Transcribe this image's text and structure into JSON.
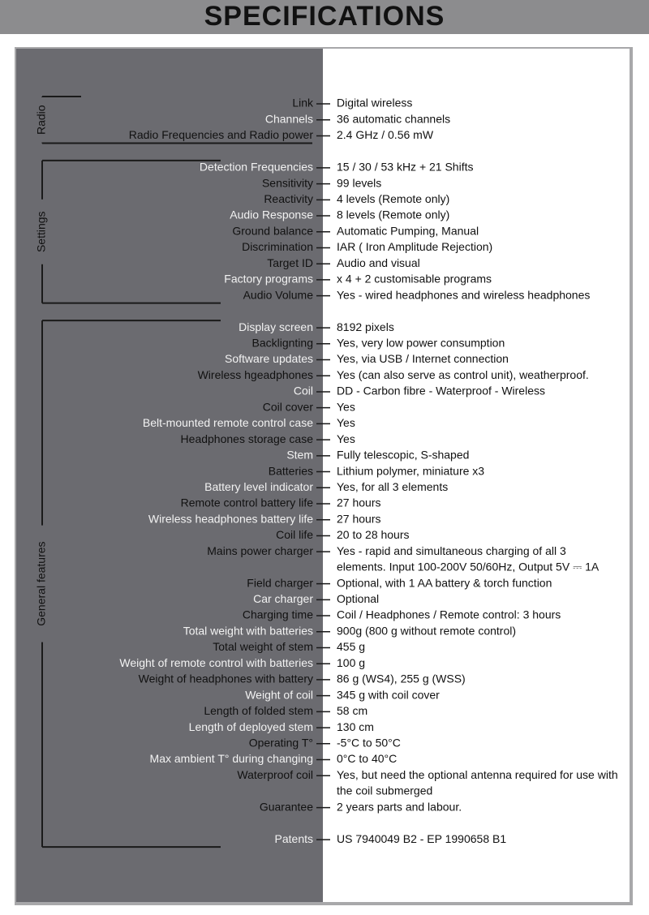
{
  "title": "SPECIFICATIONS",
  "groups": [
    {
      "name": "Radio",
      "rows": [
        {
          "label": "Link",
          "value": "Digital wireless"
        },
        {
          "label": "Channels",
          "value": "36 automatic channels"
        },
        {
          "label": "Radio Frequencies and Radio power",
          "value": "2.4 GHz / 0.56 mW"
        }
      ]
    },
    {
      "name": "Settings",
      "rows": [
        {
          "label": "Detection Frequencies",
          "value": "15 / 30  / 53 kHz +  21 Shifts"
        },
        {
          "label": "Sensitivity",
          "value": "99 levels"
        },
        {
          "label": "Reactivity",
          "value": "4 levels (Remote only)"
        },
        {
          "label": "Audio Response",
          "value": "8 levels (Remote only)"
        },
        {
          "label": "Ground balance",
          "value": "Automatic Pumping, Manual"
        },
        {
          "label": "Discrimination",
          "value": "IAR ( Iron Amplitude Rejection)"
        },
        {
          "label": "Target ID",
          "value": "Audio and visual"
        },
        {
          "label": "Factory programs",
          "value": "x 4 + 2 customisable programs"
        },
        {
          "label": "Audio Volume",
          "value": "Yes - wired headphones and wireless headphones"
        }
      ]
    },
    {
      "name": "General features",
      "rows": [
        {
          "label": "Display screen",
          "value": "8192 pixels"
        },
        {
          "label": "Backlignting",
          "value": "Yes, very low power consumption"
        },
        {
          "label": "Software updates",
          "value": "Yes, via USB / Internet connection"
        },
        {
          "label": "Wireless hgeadphones",
          "value": "Yes (can also serve as control unit), weatherproof."
        },
        {
          "label": "Coil",
          "value": "DD - Carbon fibre - Waterproof - Wireless"
        },
        {
          "label": "Coil cover",
          "value": "Yes"
        },
        {
          "label": "Belt-mounted remote control case",
          "value": "Yes"
        },
        {
          "label": "Headphones storage case",
          "value": "Yes"
        },
        {
          "label": "Stem",
          "value": "Fully telescopic, S-shaped"
        },
        {
          "label": "Batteries",
          "value": "Lithium polymer, miniature x3"
        },
        {
          "label": "Battery level indicator",
          "value": "Yes, for all 3 elements"
        },
        {
          "label": "Remote control battery life",
          "value": "27 hours"
        },
        {
          "label": "Wireless headphones battery life",
          "value": "27 hours"
        },
        {
          "label": "Coil life",
          "value": "20 to 28 hours"
        },
        {
          "label": "Mains power charger",
          "value": [
            "Yes - rapid and simultaneous charging of all 3",
            "elements. Input 100-200V 50/60Hz, Output 5V ⎓ 1A"
          ]
        },
        {
          "label": "Field charger",
          "value": "Optional, with 1 AA battery &  torch function"
        },
        {
          "label": "Car charger",
          "value": "Optional"
        },
        {
          "label": "Charging time",
          "value": "Coil / Headphones / Remote control: 3 hours"
        },
        {
          "label": "Total weight with batteries",
          "value": "900g (800 g without remote control)"
        },
        {
          "label": "Total weight of stem",
          "value": "455 g"
        },
        {
          "label": "Weight of remote control with batteries",
          "value": "100 g"
        },
        {
          "label": "Weight of headphones with battery",
          "value": "86 g (WS4), 255 g (WSS)"
        },
        {
          "label": "Weight of coil",
          "value": "345 g with coil cover"
        },
        {
          "label": "Length of folded stem",
          "value": "58 cm"
        },
        {
          "label": "Length of deployed stem",
          "value": "130 cm"
        },
        {
          "label": "Operating T°",
          "value": "-5°C to 50°C"
        },
        {
          "label": "Max ambient T° during changing",
          "value": "0°C to 40°C"
        },
        {
          "label": "Waterproof coil",
          "value": [
            "Yes, but need the optional antenna required for use with",
            "the coil submerged"
          ]
        },
        {
          "label": "Guarantee",
          "value": "2 years parts and labour."
        },
        {
          "label": "Patents",
          "value": "US 7940049 B2 - EP 1990658 B1"
        }
      ]
    }
  ]
}
